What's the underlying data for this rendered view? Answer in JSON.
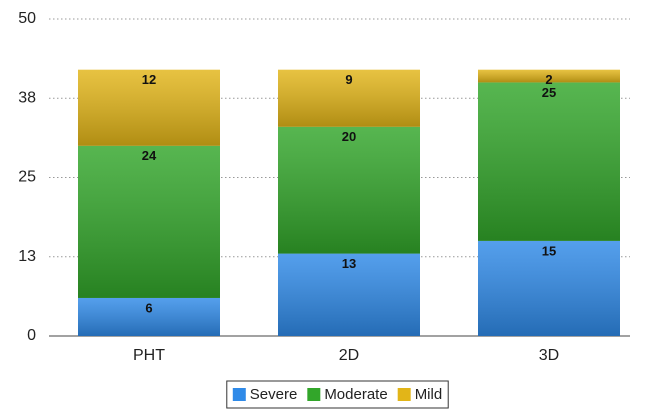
{
  "chart_data": {
    "type": "stacked-bar",
    "categories": [
      "PHT",
      "2D",
      "3D"
    ],
    "series": [
      {
        "name": "Severe",
        "color": "#2f8ae8",
        "values": [
          6,
          13,
          15
        ]
      },
      {
        "name": "Moderate",
        "color": "#32a62a",
        "values": [
          24,
          20,
          25
        ]
      },
      {
        "name": "Mild",
        "color": "#e2b518",
        "values": [
          12,
          9,
          2
        ]
      }
    ],
    "ylim": [
      0,
      50
    ],
    "yticks": [
      0,
      {
        "value": 12.5,
        "label": "13"
      },
      25,
      {
        "value": 37.5,
        "label": "38"
      },
      50
    ],
    "grid": true,
    "legend": "bottom"
  }
}
